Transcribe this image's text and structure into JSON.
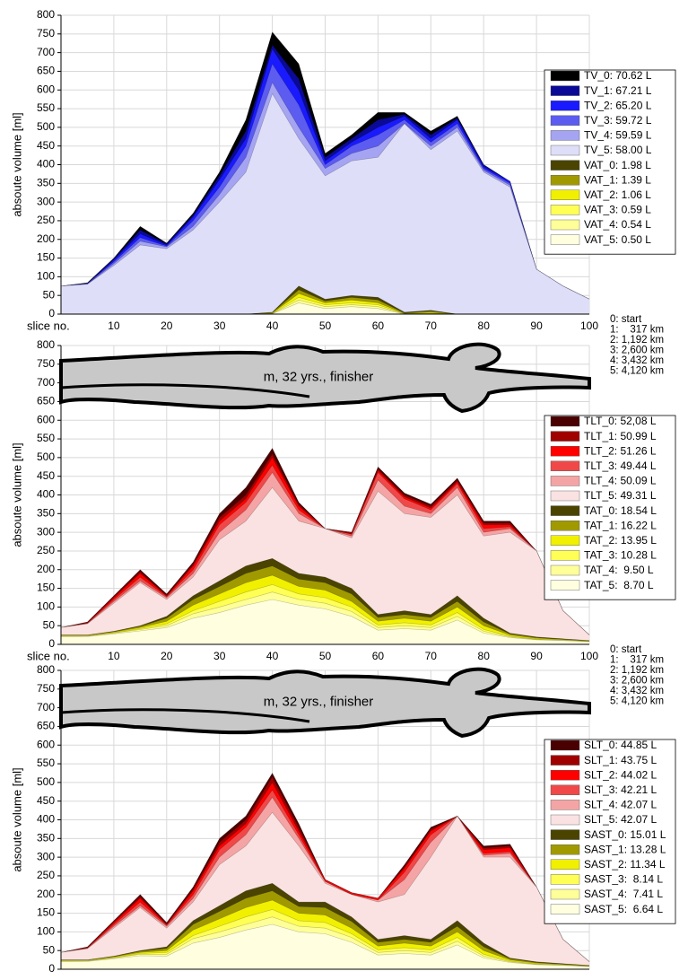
{
  "chart_data": [
    {
      "type": "area",
      "ylabel": "absoute volume [ml]",
      "xlabel": "slice no.",
      "xlim": [
        0,
        100
      ],
      "ylim": [
        0,
        800
      ],
      "xticks": [
        10,
        20,
        30,
        40,
        50,
        60,
        70,
        80,
        90,
        100
      ],
      "yticks": [
        0,
        50,
        100,
        150,
        200,
        250,
        300,
        350,
        400,
        450,
        500,
        550,
        600,
        650,
        700,
        750,
        800
      ],
      "grid": true,
      "x": [
        0,
        5,
        10,
        15,
        20,
        25,
        30,
        35,
        40,
        45,
        50,
        55,
        60,
        65,
        70,
        75,
        80,
        85,
        90,
        95,
        100
      ],
      "series": [
        {
          "name": "TV_0: 70.62 L",
          "color": "#000000",
          "values": [
            75,
            84,
            150,
            235,
            190,
            270,
            380,
            520,
            755,
            670,
            430,
            480,
            540,
            540,
            490,
            530,
            400,
            355,
            120,
            75,
            40
          ]
        },
        {
          "name": "TV_1: 67.21 L",
          "color": "#0a0a96",
          "values": [
            75,
            83,
            148,
            225,
            188,
            265,
            370,
            490,
            720,
            630,
            420,
            470,
            520,
            535,
            480,
            525,
            400,
            355,
            120,
            75,
            40
          ]
        },
        {
          "name": "TV_2: 65.20 L",
          "color": "#1a1aff",
          "values": [
            75,
            82,
            145,
            215,
            185,
            260,
            360,
            470,
            710,
            600,
            410,
            460,
            500,
            530,
            470,
            520,
            395,
            355,
            120,
            75,
            40
          ]
        },
        {
          "name": "TV_3: 59.72 L",
          "color": "#5c5cf0",
          "values": [
            75,
            82,
            140,
            205,
            182,
            250,
            340,
            450,
            670,
            560,
            400,
            450,
            480,
            520,
            460,
            510,
            390,
            350,
            120,
            75,
            40
          ]
        },
        {
          "name": "TV_4: 59.59 L",
          "color": "#a4a4f2",
          "values": [
            75,
            80,
            135,
            195,
            180,
            235,
            320,
            420,
            620,
            500,
            390,
            430,
            450,
            510,
            450,
            500,
            385,
            345,
            120,
            75,
            40
          ]
        },
        {
          "name": "TV_5: 58.00 L",
          "color": "#dedef8",
          "values": [
            75,
            80,
            130,
            185,
            175,
            225,
            300,
            380,
            590,
            470,
            370,
            410,
            420,
            510,
            440,
            490,
            380,
            340,
            120,
            75,
            40
          ]
        },
        {
          "name": "VAT_0: 1.98 L",
          "color": "#4a4400",
          "values": [
            0,
            0,
            0,
            0,
            0,
            0,
            0,
            0,
            5,
            75,
            40,
            50,
            45,
            5,
            10,
            0,
            0,
            0,
            0,
            0,
            0
          ]
        },
        {
          "name": "VAT_1: 1.39 L",
          "color": "#a09a00",
          "values": [
            0,
            0,
            0,
            0,
            0,
            0,
            0,
            0,
            4,
            65,
            35,
            45,
            38,
            3,
            8,
            0,
            0,
            0,
            0,
            0,
            0
          ]
        },
        {
          "name": "VAT_2: 1.06 L",
          "color": "#f0f000",
          "values": [
            0,
            0,
            0,
            0,
            0,
            0,
            0,
            0,
            3,
            55,
            30,
            38,
            30,
            2,
            5,
            0,
            0,
            0,
            0,
            0,
            0
          ]
        },
        {
          "name": "VAT_3: 0.59 L",
          "color": "#ffff55",
          "values": [
            0,
            0,
            0,
            0,
            0,
            0,
            0,
            0,
            2,
            45,
            25,
            30,
            25,
            1,
            3,
            0,
            0,
            0,
            0,
            0,
            0
          ]
        },
        {
          "name": "VAT_4: 0.54 L",
          "color": "#ffff99",
          "values": [
            0,
            0,
            0,
            0,
            0,
            0,
            0,
            0,
            1,
            38,
            20,
            25,
            20,
            1,
            2,
            0,
            0,
            0,
            0,
            0,
            0
          ]
        },
        {
          "name": "VAT_5: 0.50 L",
          "color": "#ffffe0",
          "values": [
            0,
            0,
            0,
            0,
            0,
            0,
            0,
            0,
            1,
            30,
            15,
            20,
            15,
            0,
            1,
            0,
            0,
            0,
            0,
            0,
            0
          ]
        }
      ],
      "distance_key": [
        "0: start",
        "1:    317 km",
        "2: 1,192 km",
        "3: 2,600 km",
        "4: 3,432 km",
        "5: 4,120 km"
      ]
    },
    {
      "type": "area",
      "ylabel": "absoute volume [ml]",
      "xlabel": "slice no.",
      "xlim": [
        0,
        100
      ],
      "ylim": [
        0,
        800
      ],
      "xticks": [
        10,
        20,
        30,
        40,
        50,
        60,
        70,
        80,
        90,
        100
      ],
      "yticks": [
        0,
        50,
        100,
        150,
        200,
        250,
        300,
        350,
        400,
        450,
        500,
        550,
        600,
        650,
        700,
        750,
        800
      ],
      "grid": true,
      "annotation": "m, 32 yrs., finisher",
      "x": [
        0,
        5,
        10,
        15,
        20,
        25,
        30,
        35,
        40,
        45,
        50,
        55,
        60,
        65,
        70,
        75,
        80,
        85,
        90,
        95,
        100
      ],
      "series": [
        {
          "name": "TLT_0: 52,08 L",
          "color": "#4a0000",
          "values": [
            45,
            60,
            130,
            200,
            135,
            220,
            350,
            420,
            525,
            380,
            310,
            300,
            475,
            405,
            375,
            445,
            330,
            330,
            250,
            90,
            25
          ]
        },
        {
          "name": "TLT_1: 50.99 L",
          "color": "#a00000",
          "values": [
            45,
            59,
            128,
            195,
            132,
            215,
            340,
            400,
            510,
            375,
            310,
            300,
            470,
            400,
            370,
            440,
            325,
            325,
            250,
            90,
            25
          ]
        },
        {
          "name": "TLT_2: 51.26 L",
          "color": "#ff0000",
          "values": [
            45,
            58,
            125,
            190,
            130,
            210,
            330,
            390,
            500,
            370,
            310,
            295,
            465,
            395,
            365,
            435,
            320,
            320,
            250,
            90,
            25
          ]
        },
        {
          "name": "TLT_3: 49.44 L",
          "color": "#f04848",
          "values": [
            45,
            57,
            120,
            180,
            128,
            200,
            320,
            380,
            480,
            360,
            310,
            295,
            460,
            390,
            360,
            430,
            310,
            315,
            250,
            90,
            25
          ]
        },
        {
          "name": "TLT_4: 50.09 L",
          "color": "#f4a4a4",
          "values": [
            45,
            56,
            115,
            170,
            125,
            190,
            300,
            360,
            460,
            350,
            310,
            290,
            440,
            370,
            350,
            420,
            300,
            310,
            250,
            90,
            25
          ]
        },
        {
          "name": "TLT_5: 49.31 L",
          "color": "#fbe2e2",
          "values": [
            45,
            55,
            110,
            165,
            120,
            180,
            280,
            330,
            420,
            330,
            310,
            285,
            410,
            350,
            340,
            400,
            290,
            300,
            250,
            90,
            25
          ]
        },
        {
          "name": "TAT_0: 18.54 L",
          "color": "#4a4400",
          "values": [
            25,
            25,
            35,
            50,
            75,
            130,
            170,
            210,
            230,
            190,
            180,
            150,
            80,
            90,
            80,
            130,
            70,
            30,
            20,
            15,
            10
          ]
        },
        {
          "name": "TAT_1: 16.22 L",
          "color": "#a09a00",
          "values": [
            25,
            25,
            34,
            48,
            70,
            120,
            155,
            190,
            210,
            175,
            165,
            135,
            72,
            80,
            72,
            115,
            60,
            28,
            18,
            14,
            10
          ]
        },
        {
          "name": "TAT_2: 13.95 L",
          "color": "#f0f000",
          "values": [
            24,
            24,
            33,
            45,
            62,
            105,
            135,
            165,
            185,
            155,
            145,
            115,
            62,
            70,
            62,
            100,
            50,
            25,
            16,
            13,
            9
          ]
        },
        {
          "name": "TAT_3: 10.28 L",
          "color": "#ffff55",
          "values": [
            23,
            23,
            31,
            42,
            55,
            90,
            115,
            140,
            160,
            135,
            125,
            100,
            52,
            58,
            52,
            85,
            40,
            22,
            14,
            12,
            8
          ]
        },
        {
          "name": "TAT_4:  9.50 L",
          "color": "#ffff99",
          "values": [
            22,
            22,
            30,
            40,
            50,
            82,
            100,
            120,
            140,
            120,
            110,
            88,
            45,
            50,
            45,
            75,
            35,
            20,
            13,
            11,
            8
          ]
        },
        {
          "name": "TAT_5:  8.70 L",
          "color": "#ffffe0",
          "values": [
            20,
            21,
            28,
            36,
            45,
            70,
            85,
            105,
            120,
            105,
            95,
            75,
            38,
            42,
            38,
            65,
            30,
            18,
            12,
            10,
            7
          ]
        }
      ],
      "distance_key": [
        "0: start",
        "1:    317 km",
        "2: 1,192 km",
        "3: 2,600 km",
        "4: 3,432 km",
        "5: 4,120 km"
      ]
    },
    {
      "type": "area",
      "ylabel": "absoute volume [ml]",
      "xlim": [
        0,
        100
      ],
      "ylim": [
        0,
        800
      ],
      "xticks": [
        10,
        20,
        30,
        40,
        50,
        60,
        70,
        80,
        90,
        100
      ],
      "yticks": [
        0,
        50,
        100,
        150,
        200,
        250,
        300,
        350,
        400,
        450,
        500,
        550,
        600,
        650,
        700,
        750,
        800
      ],
      "grid": true,
      "annotation": "m, 32 yrs., finisher",
      "x": [
        0,
        5,
        10,
        15,
        20,
        25,
        30,
        35,
        40,
        45,
        50,
        55,
        60,
        65,
        70,
        75,
        80,
        85,
        90,
        95,
        100
      ],
      "series": [
        {
          "name": "SLT_0: 44.85 L",
          "color": "#4a0000",
          "values": [
            45,
            60,
            130,
            200,
            125,
            220,
            350,
            410,
            525,
            390,
            240,
            205,
            190,
            280,
            380,
            410,
            330,
            335,
            220,
            80,
            20
          ]
        },
        {
          "name": "SLT_1: 43.75 L",
          "color": "#a00000",
          "values": [
            45,
            59,
            128,
            195,
            122,
            215,
            340,
            400,
            515,
            380,
            240,
            205,
            190,
            275,
            375,
            410,
            325,
            330,
            220,
            80,
            20
          ]
        },
        {
          "name": "SLT_2: 44.02 L",
          "color": "#ff0000",
          "values": [
            45,
            58,
            125,
            190,
            120,
            210,
            330,
            390,
            500,
            370,
            240,
            205,
            190,
            270,
            370,
            410,
            320,
            325,
            220,
            80,
            20
          ]
        },
        {
          "name": "SLT_3: 42.21 L",
          "color": "#f04848",
          "values": [
            45,
            57,
            120,
            180,
            118,
            200,
            320,
            380,
            480,
            360,
            235,
            200,
            185,
            260,
            360,
            410,
            310,
            315,
            220,
            80,
            20
          ]
        },
        {
          "name": "SLT_4: 42.07 L",
          "color": "#f4a4a4",
          "values": [
            45,
            56,
            115,
            170,
            115,
            190,
            300,
            360,
            460,
            350,
            235,
            200,
            185,
            240,
            340,
            410,
            305,
            310,
            220,
            80,
            20
          ]
        },
        {
          "name": "SLT_5: 42.07 L",
          "color": "#fbe2e2",
          "values": [
            45,
            55,
            110,
            165,
            110,
            180,
            280,
            330,
            420,
            330,
            230,
            200,
            180,
            200,
            300,
            410,
            300,
            300,
            220,
            80,
            20
          ]
        },
        {
          "name": "SAST_0: 15.01 L",
          "color": "#4a4400",
          "values": [
            25,
            25,
            35,
            50,
            60,
            130,
            170,
            210,
            230,
            180,
            180,
            140,
            80,
            90,
            80,
            130,
            70,
            30,
            20,
            15,
            10
          ]
        },
        {
          "name": "SAST_1: 13.28 L",
          "color": "#a09a00",
          "values": [
            25,
            25,
            34,
            48,
            56,
            120,
            155,
            190,
            210,
            168,
            165,
            128,
            72,
            80,
            72,
            115,
            60,
            28,
            18,
            14,
            10
          ]
        },
        {
          "name": "SAST_2: 11.34 L",
          "color": "#f0f000",
          "values": [
            24,
            24,
            33,
            45,
            50,
            105,
            135,
            165,
            185,
            150,
            145,
            110,
            62,
            70,
            62,
            100,
            50,
            25,
            16,
            13,
            9
          ]
        },
        {
          "name": "SAST_3:  8.14 L",
          "color": "#ffff55",
          "values": [
            23,
            23,
            31,
            42,
            45,
            90,
            115,
            140,
            160,
            130,
            125,
            95,
            52,
            58,
            52,
            85,
            40,
            22,
            14,
            12,
            8
          ]
        },
        {
          "name": "SAST_4:  7.41 L",
          "color": "#ffff99",
          "values": [
            22,
            22,
            30,
            40,
            40,
            82,
            100,
            120,
            140,
            115,
            110,
            85,
            45,
            50,
            45,
            75,
            35,
            20,
            13,
            11,
            8
          ]
        },
        {
          "name": "SAST_5:  6.64 L",
          "color": "#ffffe0",
          "values": [
            20,
            21,
            28,
            36,
            35,
            70,
            85,
            105,
            120,
            100,
            95,
            72,
            38,
            42,
            38,
            65,
            30,
            18,
            12,
            10,
            7
          ]
        }
      ]
    }
  ]
}
